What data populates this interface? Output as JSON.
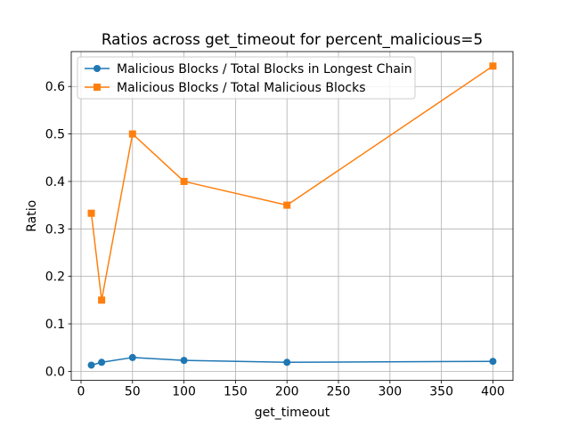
{
  "chart_data": {
    "type": "line",
    "title": "Ratios across get_timeout for percent_malicious=5",
    "xlabel": "get_timeout",
    "ylabel": "Ratio",
    "x": [
      10,
      20,
      50,
      100,
      200,
      400
    ],
    "xlim": [
      -9.5,
      419.5
    ],
    "ylim": [
      -0.0191,
      0.6735
    ],
    "xticks": [
      0,
      50,
      100,
      150,
      200,
      250,
      300,
      350,
      400
    ],
    "yticks": [
      0.0,
      0.1,
      0.2,
      0.3,
      0.4,
      0.5,
      0.6
    ],
    "grid": true,
    "legend_position": "upper-left",
    "series": [
      {
        "name": "Malicious Blocks / Total Blocks in Longest Chain",
        "values": [
          0.013,
          0.019,
          0.029,
          0.023,
          0.019,
          0.021
        ],
        "color": "#1f77b4",
        "marker": "circle"
      },
      {
        "name": "Malicious Blocks / Total Malicious Blocks",
        "values": [
          0.333,
          0.15,
          0.5,
          0.4,
          0.35,
          0.643
        ],
        "color": "#ff7f0e",
        "marker": "square"
      }
    ]
  }
}
